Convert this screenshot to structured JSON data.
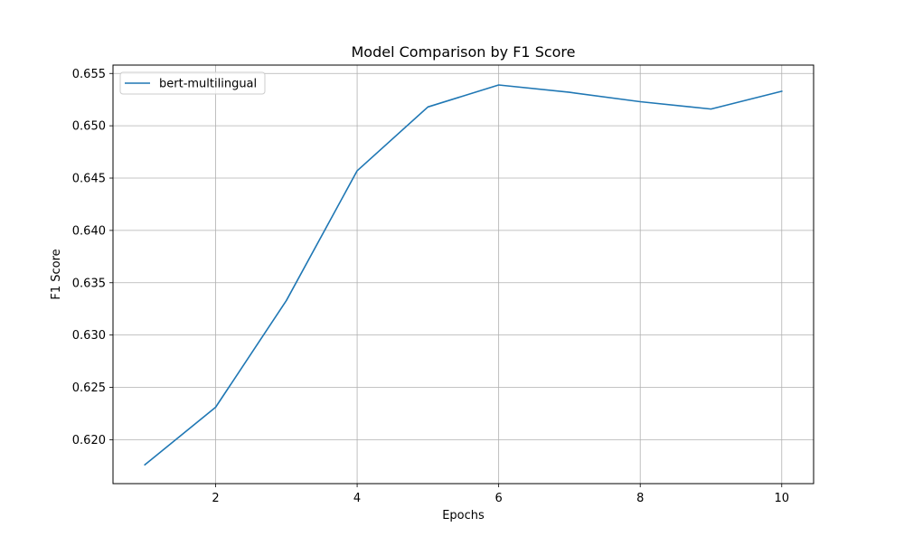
{
  "chart_data": {
    "type": "line",
    "title": "Model Comparison by F1 Score",
    "xlabel": "Epochs",
    "ylabel": "F1 Score",
    "x": [
      1,
      2,
      3,
      4,
      5,
      6,
      7,
      8,
      9,
      10
    ],
    "series": [
      {
        "name": "bert-multilingual",
        "color": "#1f77b4",
        "values": [
          0.6176,
          0.6231,
          0.6333,
          0.6457,
          0.6518,
          0.6539,
          0.6532,
          0.6523,
          0.6516,
          0.6533
        ]
      }
    ],
    "xlim": [
      0.55,
      10.45
    ],
    "ylim": [
      0.6158,
      0.6558
    ],
    "xticks": [
      2,
      4,
      6,
      8,
      10
    ],
    "xtick_labels": [
      "2",
      "4",
      "6",
      "8",
      "10"
    ],
    "yticks": [
      0.62,
      0.625,
      0.63,
      0.635,
      0.64,
      0.645,
      0.65,
      0.655
    ],
    "ytick_labels": [
      "0.620",
      "0.625",
      "0.630",
      "0.635",
      "0.640",
      "0.645",
      "0.650",
      "0.655"
    ],
    "grid": true,
    "legend_position": "top-left"
  }
}
